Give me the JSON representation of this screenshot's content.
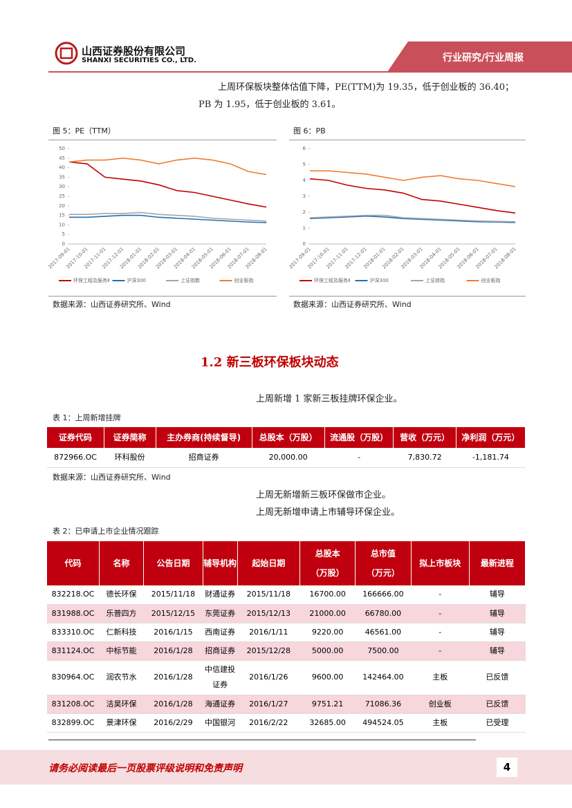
{
  "header": {
    "company_cn": "山西证券股份有限公司",
    "company_en": "SHANXI SECURITIES CO., LTD.",
    "tag": "行业研究/行业周报"
  },
  "intro": [
    "上周环保板块整体估值下降，PE(TTM)为 19.35，低于创业板的 36.40；",
    "PB 为 1.95，低于创业板的 3.61。"
  ],
  "figures": [
    {
      "caption": "图 5：PE（TTM）",
      "source": "数据来源：山西证券研究所、Wind",
      "chart_data": {
        "type": "line",
        "categories": [
          "2017-09-01",
          "2017-10-01",
          "2017-11-01",
          "2017-12-01",
          "2018-01-01",
          "2018-02-01",
          "2018-03-01",
          "2018-04-01",
          "2018-05-01",
          "2018-06-01",
          "2018-07-01",
          "2018-08-01"
        ],
        "ylim": [
          0,
          50
        ],
        "yticks": [
          0,
          5,
          10,
          15,
          20,
          25,
          30,
          35,
          40,
          45,
          50
        ],
        "legend": "bottom",
        "series": [
          {
            "name": "环保工程及服务Ⅱ",
            "color": "#c00000",
            "values": [
              43,
              42,
              35,
              34,
              33,
              31,
              28,
              27,
              25,
              23,
              21,
              19.35
            ]
          },
          {
            "name": "沪深300",
            "color": "#1f6fb5",
            "values": [
              14,
              14,
              14.5,
              15,
              15,
              14,
              13.5,
              13,
              12.5,
              12,
              11.5,
              11.2
            ]
          },
          {
            "name": "上证指数",
            "color": "#a5a5a5",
            "values": [
              15.5,
              15.5,
              16,
              16,
              16.5,
              15.5,
              15,
              14.5,
              13.5,
              13,
              12.5,
              12
            ]
          },
          {
            "name": "创业板指",
            "color": "#ed7d31",
            "values": [
              43,
              44,
              44,
              45,
              44,
              42,
              44,
              45,
              44,
              42,
              38,
              36.4
            ]
          }
        ]
      }
    },
    {
      "caption": "图 6：PB",
      "source": "数据来源：山西证券研究所、Wind",
      "chart_data": {
        "type": "line",
        "categories": [
          "2017-09-01",
          "2017-10-01",
          "2017-11-01",
          "2017-12-01",
          "2018-01-01",
          "2018-02-01",
          "2018-03-01",
          "2018-04-01",
          "2018-05-01",
          "2018-06-01",
          "2018-07-01",
          "2018-08-01"
        ],
        "ylim": [
          0,
          6
        ],
        "yticks": [
          0,
          1,
          2,
          3,
          4,
          5,
          6
        ],
        "legend": "bottom",
        "series": [
          {
            "name": "环保工程及服务Ⅱ",
            "color": "#c00000",
            "values": [
              4.1,
              4.0,
              3.7,
              3.5,
              3.4,
              3.2,
              2.8,
              2.7,
              2.5,
              2.3,
              2.1,
              1.95
            ]
          },
          {
            "name": "沪深300",
            "color": "#1f6fb5",
            "values": [
              1.6,
              1.65,
              1.7,
              1.75,
              1.7,
              1.6,
              1.55,
              1.5,
              1.45,
              1.4,
              1.38,
              1.35
            ]
          },
          {
            "name": "上证综指",
            "color": "#a5a5a5",
            "values": [
              1.65,
              1.7,
              1.75,
              1.8,
              1.8,
              1.65,
              1.6,
              1.55,
              1.5,
              1.45,
              1.42,
              1.4
            ]
          },
          {
            "name": "创业板指",
            "color": "#ed7d31",
            "values": [
              4.6,
              4.6,
              4.5,
              4.4,
              4.2,
              4.0,
              4.2,
              4.3,
              4.1,
              4.0,
              3.8,
              3.61
            ]
          }
        ]
      }
    }
  ],
  "section_title": "1.2  新三板环保板块动态",
  "para1": "上周新增 1 家新三板挂牌环保企业。",
  "table1": {
    "caption": "表 1：上周新增挂牌",
    "header": [
      "证券代码",
      "证券简称",
      "主办券商(持续督导)",
      "总股本（万股）",
      "流通股（万股）",
      "营收（万元）",
      "净利润（万元）"
    ],
    "rows": [
      [
        "872966.OC",
        "环科股份",
        "招商证券",
        "20,000.00",
        "-",
        "7,830.72",
        "-1,181.74"
      ]
    ],
    "source": "数据来源：山西证券研究所、Wind"
  },
  "para2": "上周无新增新三板环保做市企业。",
  "para3": "上周无新增申请上市辅导环保企业。",
  "table2": {
    "caption": "表 2：已申请上市企业情况跟踪",
    "header": [
      "代码",
      "名称",
      "公告日期",
      "辅导机构",
      "起始日期",
      [
        "总股本",
        "（万股）"
      ],
      [
        "总市值",
        "（万元）"
      ],
      "拟上市板块",
      "最新进程"
    ],
    "rows": [
      [
        "832218.OC",
        "德长环保",
        "2015/11/18",
        "财通证券",
        "2015/11/18",
        "16700.00",
        "166666.00",
        "-",
        "辅导"
      ],
      [
        "831988.OC",
        "乐普四方",
        "2015/12/15",
        "东莞证券",
        "2015/12/13",
        "21000.00",
        "66780.00",
        "-",
        "辅导"
      ],
      [
        "833310.OC",
        "仁新科技",
        "2016/1/15",
        "西南证券",
        "2016/1/11",
        "9220.00",
        "46561.00",
        "-",
        "辅导"
      ],
      [
        "831124.OC",
        "中标节能",
        "2016/1/28",
        "招商证券",
        "2015/12/28",
        "5000.00",
        "7500.00",
        "-",
        "辅导"
      ],
      [
        "830964.OC",
        "润农节水",
        "2016/1/28",
        [
          "中信建投",
          "证券"
        ],
        "2016/1/26",
        "9600.00",
        "142464.00",
        "主板",
        "已反馈"
      ],
      [
        "831208.OC",
        "洁昊环保",
        "2016/1/28",
        "海通证券",
        "2016/1/27",
        "9751.21",
        "71086.36",
        "创业板",
        "已反馈"
      ],
      [
        "832899.OC",
        "景津环保",
        "2016/2/29",
        "中国银河",
        "2016/2/22",
        "32685.00",
        "494524.05",
        "主板",
        "已受理"
      ]
    ]
  },
  "footer": {
    "disclaimer": "请务必阅读最后一页股票评级说明和免责声明",
    "page": "4"
  }
}
